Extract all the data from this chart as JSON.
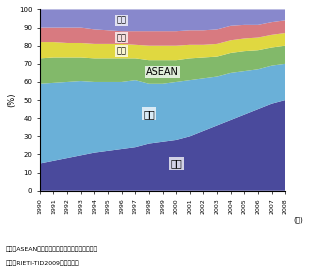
{
  "years": [
    1990,
    1991,
    1992,
    1993,
    1994,
    1995,
    1996,
    1997,
    1998,
    1999,
    2000,
    2001,
    2002,
    2003,
    2004,
    2005,
    2006,
    2007,
    2008
  ],
  "china": [
    15,
    16.5,
    18,
    19.5,
    21,
    22,
    23,
    24,
    26,
    27,
    28,
    30,
    33,
    36,
    39,
    42,
    45,
    48,
    50
  ],
  "japan": [
    44,
    43,
    42,
    41,
    39,
    38,
    37,
    37,
    33,
    32,
    32,
    31,
    29,
    27,
    26,
    24,
    22,
    21,
    20
  ],
  "asean": [
    14,
    14,
    13.5,
    13,
    13,
    13,
    13,
    12,
    13,
    13,
    12,
    12,
    11.5,
    11,
    11,
    11,
    10.5,
    10,
    10
  ],
  "korea": [
    9,
    8.5,
    8,
    8,
    8,
    8,
    8,
    7.5,
    8,
    8,
    8,
    7.5,
    7,
    7,
    7,
    7,
    7,
    7,
    7
  ],
  "taiwan": [
    8,
    8,
    8.5,
    8.5,
    8,
    7.5,
    7,
    7.5,
    8,
    8,
    8,
    8,
    8,
    8,
    8,
    7.5,
    7,
    7,
    7
  ],
  "hongkong": [
    10,
    10,
    10,
    10,
    11,
    11.5,
    12,
    12,
    12,
    12,
    12,
    11.5,
    11.5,
    11,
    9,
    8.5,
    8.5,
    7,
    6
  ],
  "colors": {
    "china": "#4a4a9c",
    "japan": "#6ab0d8",
    "asean": "#82b96a",
    "korea": "#e0d840",
    "taiwan": "#d87a80",
    "hongkong": "#8888cc"
  },
  "labels": {
    "china": "中国",
    "japan": "日本",
    "asean": "ASEAN",
    "korea": "韓国",
    "taiwan": "台湾",
    "hongkong": "香港"
  },
  "ylabel": "(%)",
  "xlabel": "(年)",
  "note1": "備考：ASEANはラオス、ミャンマーを除く合計。",
  "note2": "資料：RIETI-TID2009から作成。",
  "background_color": "#ffffff"
}
